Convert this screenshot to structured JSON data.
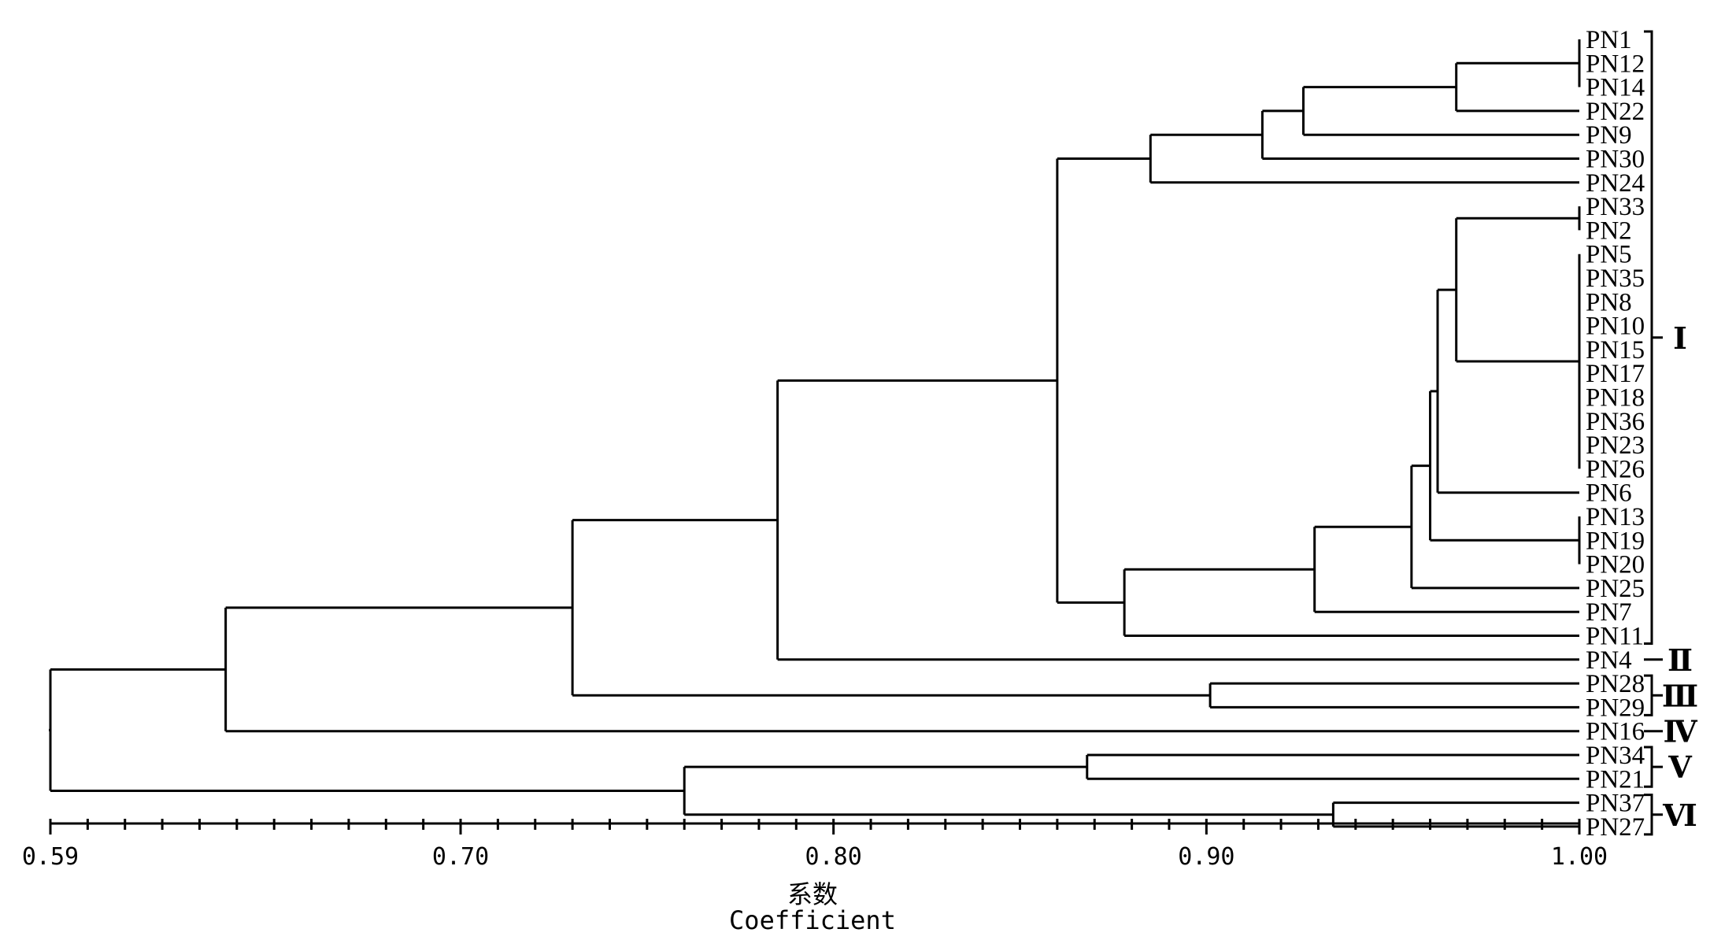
{
  "axis": {
    "ticks": [
      "0.59",
      "0.70",
      "0.80",
      "0.90",
      "1.00"
    ],
    "tick_values": [
      0.59,
      0.7,
      0.8,
      0.9,
      1.0
    ],
    "range": [
      0.59,
      1.0
    ],
    "title_cn": "系数",
    "title_en": "Coefficient"
  },
  "leaves": [
    "PN1",
    "PN12",
    "PN14",
    "PN22",
    "PN9",
    "PN30",
    "PN24",
    "PN33",
    "PN2",
    "PN5",
    "PN35",
    "PN8",
    "PN10",
    "PN15",
    "PN17",
    "PN18",
    "PN36",
    "PN23",
    "PN26",
    "PN6",
    "PN13",
    "PN19",
    "PN20",
    "PN25",
    "PN7",
    "PN11",
    "PN4",
    "PN28",
    "PN29",
    "PN16",
    "PN34",
    "PN21",
    "PN37",
    "PN27"
  ],
  "clusters": [
    {
      "label": "Ⅰ",
      "from": "PN1",
      "to": "PN11"
    },
    {
      "label": "Ⅱ",
      "from": "PN4",
      "to": "PN4"
    },
    {
      "label": "Ⅲ",
      "from": "PN28",
      "to": "PN29"
    },
    {
      "label": "Ⅳ",
      "from": "PN16",
      "to": "PN16"
    },
    {
      "label": "Ⅴ",
      "from": "PN34",
      "to": "PN21"
    },
    {
      "label": "Ⅵ",
      "from": "PN37",
      "to": "PN27"
    }
  ],
  "merges": [
    {
      "id": "a",
      "c": [
        0,
        1,
        2
      ],
      "h": 1.0
    },
    {
      "id": "b",
      "c": [
        "a",
        3
      ],
      "h": 0.967
    },
    {
      "id": "c",
      "c": [
        "b",
        4
      ],
      "h": 0.926
    },
    {
      "id": "d",
      "c": [
        "c",
        5
      ],
      "h": 0.915
    },
    {
      "id": "e",
      "c": [
        "d",
        6
      ],
      "h": 0.885
    },
    {
      "id": "f",
      "c": [
        7,
        8
      ],
      "h": 1.0
    },
    {
      "id": "g",
      "c": [
        9,
        10,
        11,
        12,
        13,
        14,
        15,
        16,
        17,
        18
      ],
      "h": 1.0
    },
    {
      "id": "h",
      "c": [
        "f",
        "g"
      ],
      "h": 0.967
    },
    {
      "id": "i",
      "c": [
        "h",
        19
      ],
      "h": 0.962
    },
    {
      "id": "j",
      "c": [
        20,
        21,
        22
      ],
      "h": 1.0
    },
    {
      "id": "k",
      "c": [
        "i",
        "j"
      ],
      "h": 0.96
    },
    {
      "id": "l",
      "c": [
        "k",
        23
      ],
      "h": 0.955
    },
    {
      "id": "m",
      "c": [
        "l",
        24
      ],
      "h": 0.929
    },
    {
      "id": "n",
      "c": [
        "m",
        25
      ],
      "h": 0.878
    },
    {
      "id": "o",
      "c": [
        "e",
        "n"
      ],
      "h": 0.86
    },
    {
      "id": "p",
      "c": [
        "o",
        26
      ],
      "h": 0.785
    },
    {
      "id": "q",
      "c": [
        27,
        28
      ],
      "h": 0.901
    },
    {
      "id": "r",
      "c": [
        "p",
        "q"
      ],
      "h": 0.73
    },
    {
      "id": "s",
      "c": [
        "r",
        29
      ],
      "h": 0.637
    },
    {
      "id": "t",
      "c": [
        30,
        31
      ],
      "h": 0.868
    },
    {
      "id": "u",
      "c": [
        32,
        33
      ],
      "h": 0.934
    },
    {
      "id": "v",
      "c": [
        "t",
        "u"
      ],
      "h": 0.76
    },
    {
      "id": "w",
      "c": [
        "s",
        "v"
      ],
      "h": 0.59
    }
  ]
}
